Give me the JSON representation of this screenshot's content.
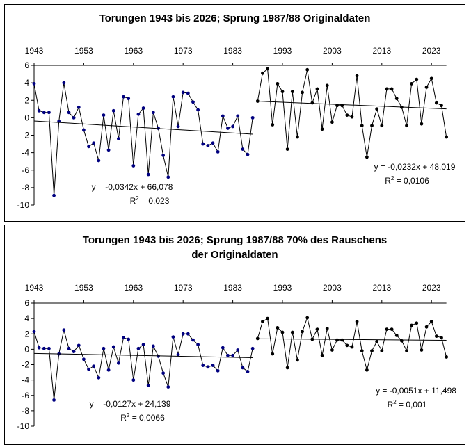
{
  "chart_data": [
    {
      "type": "line",
      "title": "Torungen 1943 bis 2026; Sprung 1987/88 Originaldaten",
      "xlabel": "",
      "ylabel": "",
      "xlim": [
        1943,
        2026
      ],
      "ylim": [
        -10,
        6
      ],
      "x_tick_labels": [
        "1943",
        "1953",
        "1963",
        "1973",
        "1983",
        "1993",
        "2003",
        "2013",
        "2023"
      ],
      "y_tick_labels": [
        "6",
        "4",
        "2",
        "0",
        "-2",
        "-4",
        "-6",
        "-8",
        "-10"
      ],
      "grid": false,
      "legend": "none",
      "series": [
        {
          "name": "1943-1987",
          "color": "#000080",
          "x_start": 1943,
          "values": [
            3.9,
            0.8,
            0.6,
            0.6,
            -8.9,
            -0.4,
            4.0,
            0.6,
            0.0,
            1.2,
            -1.4,
            -3.3,
            -2.9,
            -4.9,
            0.3,
            -3.7,
            0.8,
            -2.4,
            2.4,
            2.2,
            -5.5,
            0.4,
            1.1,
            -6.5,
            0.6,
            -1.2,
            -4.3,
            -6.8,
            2.4,
            -1.0,
            2.9,
            2.8,
            1.8,
            0.9,
            -3.0,
            -3.2,
            -2.9,
            -3.9,
            0.2,
            -1.2,
            -1.0,
            0.2,
            -3.6,
            -4.2,
            0.0
          ],
          "trend": {
            "slope": -0.0342,
            "intercept": 66.078,
            "equation": "y = -0,0342x + 66,078",
            "r2": "R² = 0,023",
            "r2_prefix": "R",
            "r2_suffix": " = 0,023"
          }
        },
        {
          "name": "1988-2026",
          "color": "#000000",
          "x_start": 1988,
          "values": [
            1.9,
            5.1,
            5.6,
            -0.8,
            3.9,
            3.0,
            -3.6,
            3.0,
            -2.2,
            2.9,
            5.5,
            1.7,
            3.3,
            -1.3,
            3.7,
            -0.5,
            1.4,
            1.4,
            0.3,
            0.1,
            4.8,
            -0.9,
            -4.5,
            -0.9,
            1.0,
            -0.9,
            3.3,
            3.3,
            2.2,
            1.2,
            -0.9,
            3.9,
            4.4,
            -0.7,
            3.5,
            4.5,
            1.7,
            1.4,
            -2.2
          ],
          "trend": {
            "slope": -0.0232,
            "intercept": 48.019,
            "equation": "y = -0,0232x + 48,019",
            "r2": "R² = 0,0106",
            "r2_prefix": "R",
            "r2_suffix": " = 0,0106"
          }
        }
      ]
    },
    {
      "type": "line",
      "title": "Torungen 1943 bis 2026; Sprung 1987/88 70% des Rauschens der Originaldaten",
      "title_line1": "Torungen 1943 bis 2026; Sprung 1987/88 70% des Rauschens",
      "title_line2": "der Originaldaten",
      "xlabel": "",
      "ylabel": "",
      "xlim": [
        1943,
        2026
      ],
      "ylim": [
        -10,
        6
      ],
      "x_tick_labels": [
        "1943",
        "1953",
        "1963",
        "1973",
        "1983",
        "1993",
        "2003",
        "2013",
        "2023"
      ],
      "y_tick_labels": [
        "6",
        "4",
        "2",
        "0",
        "-2",
        "-4",
        "-6",
        "-8",
        "-10"
      ],
      "grid": false,
      "legend": "none",
      "series": [
        {
          "name": "1943-1987",
          "color": "#000080",
          "x_start": 1943,
          "values": [
            2.3,
            0.2,
            0.1,
            0.1,
            -6.6,
            -0.6,
            2.5,
            0.1,
            -0.3,
            0.5,
            -1.3,
            -2.6,
            -2.2,
            -3.7,
            0.1,
            -2.7,
            0.3,
            -1.8,
            1.5,
            1.3,
            -4.0,
            0.1,
            0.6,
            -4.7,
            0.4,
            -0.9,
            -3.1,
            -4.9,
            1.6,
            -0.7,
            2.0,
            2.0,
            1.2,
            0.6,
            -2.1,
            -2.3,
            -2.1,
            -2.8,
            0.2,
            -0.8,
            -0.8,
            -0.1,
            -2.4,
            -2.9,
            0.1
          ],
          "trend": {
            "slope": -0.0127,
            "intercept": 24.139,
            "equation": "y = -0,0127x + 24,139",
            "r2": "R² = 0,0066",
            "r2_prefix": "R",
            "r2_suffix": " = 0,0066"
          }
        },
        {
          "name": "1988-2026",
          "color": "#000000",
          "x_start": 1988,
          "values": [
            1.4,
            3.6,
            4.0,
            -0.6,
            2.8,
            2.2,
            -2.4,
            2.2,
            -1.4,
            2.3,
            4.1,
            1.3,
            2.6,
            -0.8,
            2.7,
            -0.1,
            1.2,
            1.2,
            0.5,
            0.3,
            3.6,
            -0.2,
            -2.7,
            -0.2,
            1.0,
            -0.2,
            2.6,
            2.6,
            1.8,
            1.1,
            -0.2,
            3.1,
            3.4,
            -0.1,
            2.9,
            3.6,
            1.7,
            1.5,
            -1.0
          ],
          "trend": {
            "slope": -0.0051,
            "intercept": 11.498,
            "equation": "y = -0,0051x + 11,498",
            "r2": "R² = 0,001",
            "r2_prefix": "R",
            "r2_suffix": " = 0,001"
          }
        }
      ]
    }
  ]
}
